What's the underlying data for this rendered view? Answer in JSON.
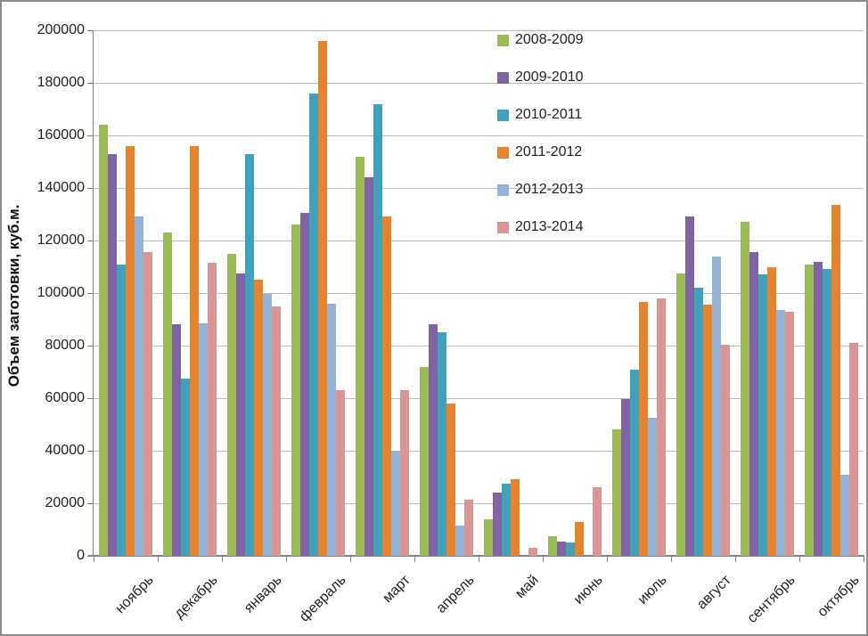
{
  "chart_data": {
    "type": "bar",
    "title": "",
    "xlabel": "",
    "ylabel": "Объем заготовки, куб.м.",
    "ylim": [
      0,
      200000
    ],
    "ytick_step": 20000,
    "yticks": [
      0,
      20000,
      40000,
      60000,
      80000,
      100000,
      120000,
      140000,
      160000,
      180000,
      200000
    ],
    "grid": "horizontal",
    "legend_position": "inside-top-right",
    "categories": [
      "ноябрь",
      "декабрь",
      "январь",
      "февраль",
      "март",
      "апрель",
      "май",
      "июнь",
      "июль",
      "август",
      "сентябрь",
      "октябрь"
    ],
    "series": [
      {
        "name": "2008-2009",
        "color": "#9bbb59",
        "values": [
          164000,
          123000,
          115000,
          126000,
          152000,
          72000,
          14000,
          7500,
          48000,
          107500,
          127000,
          111000
        ]
      },
      {
        "name": "2009-2010",
        "color": "#8064a2",
        "values": [
          153000,
          88000,
          107500,
          130500,
          144000,
          88000,
          24000,
          5500,
          59500,
          129000,
          115500,
          112000
        ]
      },
      {
        "name": "2010-2011",
        "color": "#41a0bc",
        "values": [
          111000,
          67500,
          153000,
          176000,
          172000,
          85000,
          27500,
          5000,
          71000,
          102000,
          107000,
          109000
        ]
      },
      {
        "name": "2011-2012",
        "color": "#e8832d",
        "values": [
          156000,
          156000,
          105000,
          196000,
          129000,
          58000,
          29000,
          13000,
          96500,
          95500,
          110000,
          133500
        ]
      },
      {
        "name": "2012-2013",
        "color": "#95b3d7",
        "values": [
          129000,
          88500,
          99500,
          96000,
          40000,
          11500,
          0,
          0,
          52500,
          114000,
          93500,
          31000
        ]
      },
      {
        "name": "2013-2014",
        "color": "#d99694",
        "values": [
          115500,
          111500,
          95000,
          63000,
          63000,
          21500,
          3000,
          26000,
          98000,
          80500,
          93000,
          81000
        ]
      }
    ]
  },
  "colors": {
    "background": "#ffffff",
    "frame_border": "#8c8c8c",
    "axis_line": "#7f7f7f",
    "gridline": "#bdbdbd",
    "text": "#1f1f1f"
  }
}
